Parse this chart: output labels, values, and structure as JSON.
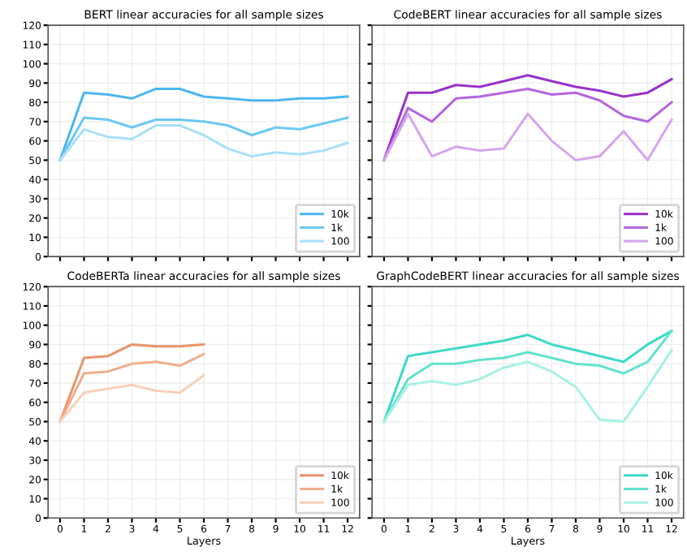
{
  "chart_data": [
    {
      "type": "line",
      "title": "BERT linear accuracies for all sample sizes",
      "x": [
        0,
        1,
        2,
        3,
        4,
        5,
        6,
        7,
        8,
        9,
        10,
        11,
        12
      ],
      "xlim": [
        -0.5,
        12.5
      ],
      "xticks": [
        0,
        1,
        2,
        3,
        4,
        5,
        6,
        7,
        8,
        9,
        10,
        11,
        12
      ],
      "ylim": [
        0,
        120
      ],
      "yticks": [
        0,
        10,
        20,
        30,
        40,
        50,
        60,
        70,
        80,
        90,
        100,
        110,
        120
      ],
      "tick_labels": "y",
      "grid": true,
      "legend": "bottom right",
      "series": [
        {
          "name": "10k",
          "color": "#4cb6ee",
          "values": [
            50,
            85,
            84,
            82,
            87,
            87,
            83,
            82,
            81,
            81,
            82,
            82,
            83
          ]
        },
        {
          "name": "1k",
          "color": "#6cc8f2",
          "values": [
            50,
            72,
            71,
            67,
            71,
            71,
            70,
            68,
            63,
            67,
            66,
            69,
            72
          ]
        },
        {
          "name": "100",
          "color": "#a8e0f8",
          "values": [
            50,
            66,
            62,
            61,
            68,
            68,
            63,
            56,
            52,
            54,
            53,
            55,
            59
          ]
        }
      ]
    },
    {
      "type": "line",
      "title": "CodeBERT linear accuracies for all sample sizes",
      "x": [
        0,
        1,
        2,
        3,
        4,
        5,
        6,
        7,
        8,
        9,
        10,
        11,
        12
      ],
      "xlim": [
        -0.5,
        12.5
      ],
      "xticks": [
        0,
        1,
        2,
        3,
        4,
        5,
        6,
        7,
        8,
        9,
        10,
        11,
        12
      ],
      "ylim": [
        0,
        120
      ],
      "yticks": [
        0,
        10,
        20,
        30,
        40,
        50,
        60,
        70,
        80,
        90,
        100,
        110,
        120
      ],
      "tick_labels": false,
      "grid": true,
      "legend": "bottom right",
      "series": [
        {
          "name": "10k",
          "color": "#9a32c8",
          "values": [
            50,
            85,
            85,
            89,
            88,
            91,
            94,
            91,
            88,
            86,
            83,
            85,
            92
          ]
        },
        {
          "name": "1k",
          "color": "#b466dc",
          "values": [
            50,
            77,
            70,
            82,
            83,
            85,
            87,
            84,
            85,
            81,
            73,
            70,
            80
          ]
        },
        {
          "name": "100",
          "color": "#d4a6ec",
          "values": [
            50,
            74,
            52,
            57,
            55,
            56,
            74,
            60,
            50,
            52,
            65,
            50,
            71
          ]
        }
      ]
    },
    {
      "type": "line",
      "title": "CodeBERTa linear accuracies for all sample sizes",
      "x": [
        0,
        1,
        2,
        3,
        4,
        5,
        6
      ],
      "xlim": [
        -0.5,
        12.5
      ],
      "xticks": [
        0,
        1,
        2,
        3,
        4,
        5,
        6,
        7,
        8,
        9,
        10,
        11,
        12
      ],
      "ylim": [
        0,
        120
      ],
      "yticks": [
        0,
        10,
        20,
        30,
        40,
        50,
        60,
        70,
        80,
        90,
        100,
        110,
        120
      ],
      "xlabel": "Layers",
      "grid": true,
      "legend": "bottom right",
      "series": [
        {
          "name": "10k",
          "color": "#e8946a",
          "values": [
            50,
            83,
            84,
            90,
            89,
            89,
            90
          ]
        },
        {
          "name": "1k",
          "color": "#f0ae8c",
          "values": [
            50,
            75,
            76,
            80,
            81,
            79,
            85
          ]
        },
        {
          "name": "100",
          "color": "#f8d0b8",
          "values": [
            50,
            65,
            67,
            69,
            66,
            65,
            74
          ]
        }
      ]
    },
    {
      "type": "line",
      "title": "GraphCodeBERT linear accuracies for all sample sizes",
      "x": [
        0,
        1,
        2,
        3,
        4,
        5,
        6,
        7,
        8,
        9,
        10,
        11,
        12
      ],
      "xlim": [
        -0.5,
        12.5
      ],
      "xticks": [
        0,
        1,
        2,
        3,
        4,
        5,
        6,
        7,
        8,
        9,
        10,
        11,
        12
      ],
      "ylim": [
        0,
        120
      ],
      "yticks": [
        0,
        10,
        20,
        30,
        40,
        50,
        60,
        70,
        80,
        90,
        100,
        110,
        120
      ],
      "xlabel": "Layers",
      "tick_labels": "x",
      "grid": true,
      "legend": "bottom right",
      "series": [
        {
          "name": "10k",
          "color": "#3ed8c6",
          "values": [
            50,
            84,
            86,
            88,
            90,
            92,
            95,
            90,
            87,
            84,
            81,
            90,
            97
          ]
        },
        {
          "name": "1k",
          "color": "#62e2cc",
          "values": [
            50,
            72,
            80,
            80,
            82,
            83,
            86,
            83,
            80,
            79,
            75,
            81,
            97
          ]
        },
        {
          "name": "100",
          "color": "#a8f0e4",
          "values": [
            50,
            69,
            71,
            69,
            72,
            78,
            81,
            76,
            68,
            51,
            50,
            68,
            87
          ]
        }
      ]
    }
  ]
}
